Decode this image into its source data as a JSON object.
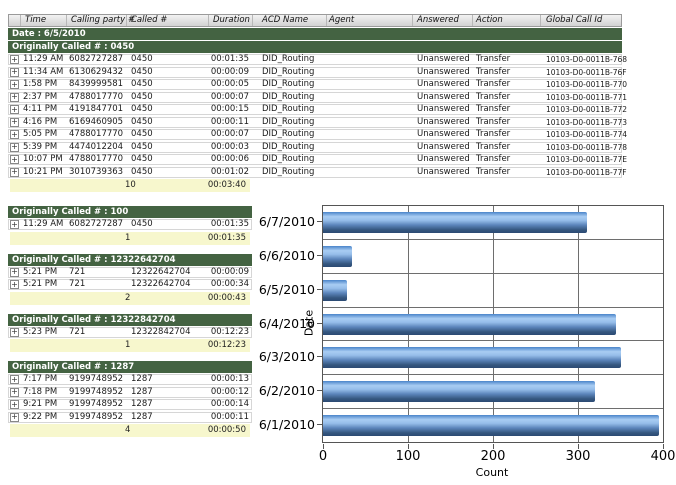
{
  "icons": {
    "expand": "+"
  },
  "columns": [
    "",
    "Time",
    "Calling party #",
    "Called #",
    "Duration",
    "ACD Name",
    "Agent",
    "Answered",
    "Action",
    "Global Call Id"
  ],
  "date_group": {
    "label": "Date : 6/5/2010"
  },
  "sections": [
    {
      "header": "Originally Called # : 0450",
      "rows": [
        {
          "time": "11:29 AM",
          "calling": "6082727287",
          "called": "0450",
          "duration": "00:01:35",
          "acd": "DID_Routing",
          "agent": "",
          "answered": "Unanswered",
          "action": "Transfer",
          "global": "10103-D0-0011B-768"
        },
        {
          "time": "11:34 AM",
          "calling": "6130629432",
          "called": "0450",
          "duration": "00:00:09",
          "acd": "DID_Routing",
          "agent": "",
          "answered": "Unanswered",
          "action": "Transfer",
          "global": "10103-D0-0011B-76F"
        },
        {
          "time": "1:58 PM",
          "calling": "8439999581",
          "called": "0450",
          "duration": "00:00:05",
          "acd": "DID_Routing",
          "agent": "",
          "answered": "Unanswered",
          "action": "Transfer",
          "global": "10103-D0-0011B-770"
        },
        {
          "time": "2:37 PM",
          "calling": "4788017770",
          "called": "0450",
          "duration": "00:00:07",
          "acd": "DID_Routing",
          "agent": "",
          "answered": "Unanswered",
          "action": "Transfer",
          "global": "10103-D0-0011B-771"
        },
        {
          "time": "4:11 PM",
          "calling": "4191847701",
          "called": "0450",
          "duration": "00:00:15",
          "acd": "DID_Routing",
          "agent": "",
          "answered": "Unanswered",
          "action": "Transfer",
          "global": "10103-D0-0011B-772"
        },
        {
          "time": "4:16 PM",
          "calling": "6169460905",
          "called": "0450",
          "duration": "00:00:11",
          "acd": "DID_Routing",
          "agent": "",
          "answered": "Unanswered",
          "action": "Transfer",
          "global": "10103-D0-0011B-773"
        },
        {
          "time": "5:05 PM",
          "calling": "4788017770",
          "called": "0450",
          "duration": "00:00:07",
          "acd": "DID_Routing",
          "agent": "",
          "answered": "Unanswered",
          "action": "Transfer",
          "global": "10103-D0-0011B-774"
        },
        {
          "time": "5:39 PM",
          "calling": "4474012204",
          "called": "0450",
          "duration": "00:00:03",
          "acd": "DID_Routing",
          "agent": "",
          "answered": "Unanswered",
          "action": "Transfer",
          "global": "10103-D0-0011B-778"
        },
        {
          "time": "10:07 PM",
          "calling": "4788017770",
          "called": "0450",
          "duration": "00:00:06",
          "acd": "DID_Routing",
          "agent": "",
          "answered": "Unanswered",
          "action": "Transfer",
          "global": "10103-D0-0011B-77E"
        },
        {
          "time": "10:21 PM",
          "calling": "3010739363",
          "called": "0450",
          "duration": "00:01:02",
          "acd": "DID_Routing",
          "agent": "",
          "answered": "Unanswered",
          "action": "Transfer",
          "global": "10103-D0-0011B-77F"
        }
      ],
      "summary": {
        "count": "10",
        "duration": "00:03:40"
      }
    },
    {
      "header": "Originally Called # : 100",
      "rows": [
        {
          "time": "11:29 AM",
          "calling": "6082727287",
          "called": "0450",
          "duration": "00:01:35"
        }
      ],
      "summary": {
        "count": "1",
        "duration": "00:01:35"
      }
    },
    {
      "header": "Originally Called # : 12322642704",
      "rows": [
        {
          "time": "5:21 PM",
          "calling": "721",
          "called": "12322642704",
          "duration": "00:00:09"
        },
        {
          "time": "5:21 PM",
          "calling": "721",
          "called": "12322642704",
          "duration": "00:00:34"
        }
      ],
      "summary": {
        "count": "2",
        "duration": "00:00:43"
      }
    },
    {
      "header": "Originally Called # : 12322842704",
      "rows": [
        {
          "time": "5:23 PM",
          "calling": "721",
          "called": "12322842704",
          "duration": "00:12:23"
        }
      ],
      "summary": {
        "count": "1",
        "duration": "00:12:23"
      }
    },
    {
      "header": "Originally Called # : 1287",
      "rows": [
        {
          "time": "7:17 PM",
          "calling": "9199748952",
          "called": "1287",
          "duration": "00:00:13"
        },
        {
          "time": "7:18 PM",
          "calling": "9199748952",
          "called": "1287",
          "duration": "00:00:12"
        },
        {
          "time": "9:21 PM",
          "calling": "9199748952",
          "called": "1287",
          "duration": "00:00:14"
        },
        {
          "time": "9:22 PM",
          "calling": "9199748952",
          "called": "1287",
          "duration": "00:00:11"
        }
      ],
      "summary": {
        "count": "4",
        "duration": "00:00:50"
      }
    }
  ],
  "chart_data": {
    "type": "bar",
    "orientation": "horizontal",
    "title": "",
    "categories": [
      "6/7/2010",
      "6/6/2010",
      "6/5/2010",
      "6/4/2010",
      "6/3/2010",
      "6/2/2010",
      "6/1/2010"
    ],
    "values": [
      310,
      34,
      28,
      345,
      350,
      320,
      395
    ],
    "xlabel": "Count",
    "ylabel": "Date",
    "xlim": [
      0,
      400
    ],
    "xticks": [
      0,
      100,
      200,
      300,
      400
    ],
    "grid": true,
    "legend": "none",
    "bar_color_light": "#a9cdf3",
    "bar_color_dark": "#2b4a73"
  },
  "colors": {
    "group_header_bg": "#446342",
    "summary_bg": "#f7f7cd",
    "table_header_bg": "#d9d9d9",
    "row_border": "#d6d6d6",
    "grid_line": "#6e6e6e"
  }
}
